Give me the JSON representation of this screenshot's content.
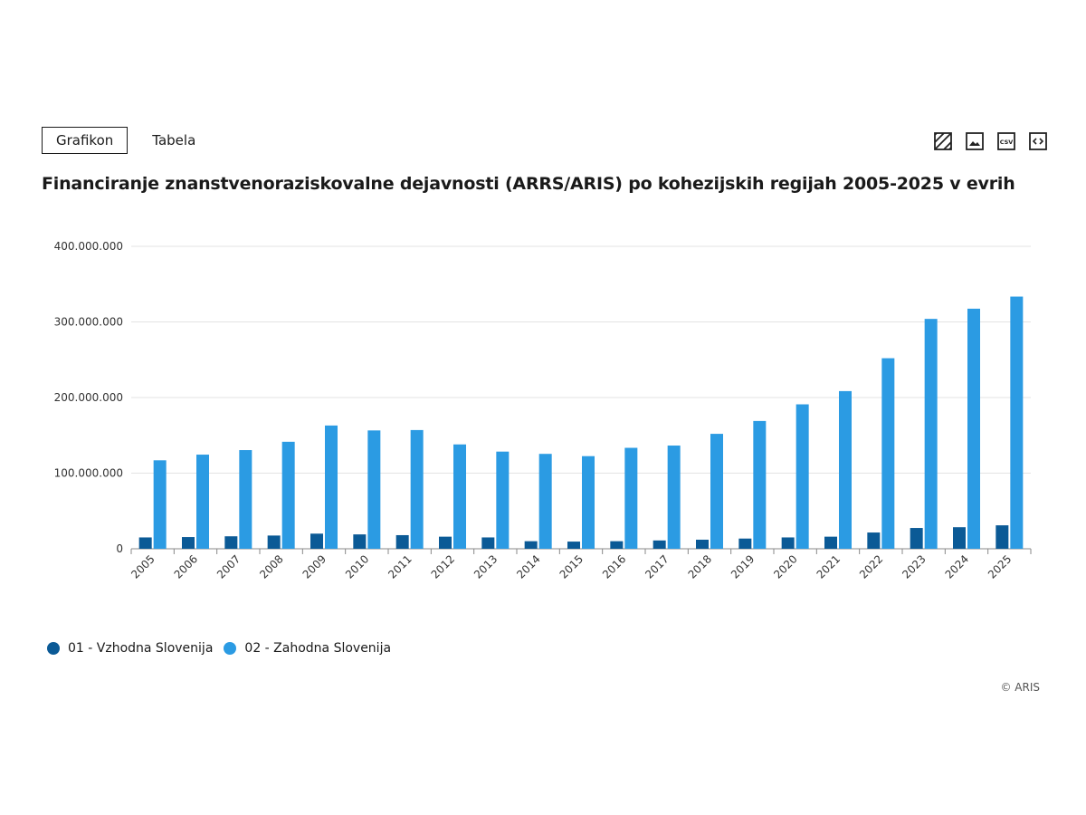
{
  "tabs": {
    "chart_label": "Grafikon",
    "table_label": "Tabela"
  },
  "toolbar": {
    "csv_label": "CSV"
  },
  "credit": "© ARIS",
  "colors": {
    "series1": "#0b5a96",
    "series2": "#2b9be3",
    "grid": "#e3e3e3",
    "axis": "#888888",
    "text": "#333333"
  },
  "chart_data": {
    "type": "bar",
    "title": "Financiranje znanstvenoraziskovalne dejavnosti (ARRS/ARIS) po kohezijskih regijah 2005-2025 v evrih",
    "xlabel": "",
    "ylabel": "",
    "ylim": [
      0,
      400000000
    ],
    "yticks": [
      0,
      100000000,
      200000000,
      300000000,
      400000000
    ],
    "ytick_labels": [
      "0",
      "100.000.000",
      "200.000.000",
      "300.000.000",
      "400.000.000"
    ],
    "grid": true,
    "legend_position": "bottom-left",
    "categories": [
      "2005",
      "2006",
      "2007",
      "2008",
      "2009",
      "2010",
      "2011",
      "2012",
      "2013",
      "2014",
      "2015",
      "2016",
      "2017",
      "2018",
      "2019",
      "2020",
      "2021",
      "2022",
      "2023",
      "2024",
      "2025"
    ],
    "series": [
      {
        "name": "01 - Vzhodna Slovenija",
        "color": "#0b5a96",
        "values": [
          15000000,
          15500000,
          16500000,
          17500000,
          20000000,
          19000000,
          18000000,
          16000000,
          15000000,
          10000000,
          9500000,
          10000000,
          11000000,
          12000000,
          13500000,
          15000000,
          16000000,
          21500000,
          27500000,
          28500000,
          31000000
        ]
      },
      {
        "name": "02 - Zahodna Slovenija",
        "color": "#2b9be3",
        "values": [
          117000000,
          124500000,
          130500000,
          141500000,
          163000000,
          156500000,
          157000000,
          138000000,
          128500000,
          125500000,
          122500000,
          133500000,
          136500000,
          152000000,
          169000000,
          191000000,
          208500000,
          252000000,
          304000000,
          317500000,
          333500000
        ]
      }
    ]
  }
}
